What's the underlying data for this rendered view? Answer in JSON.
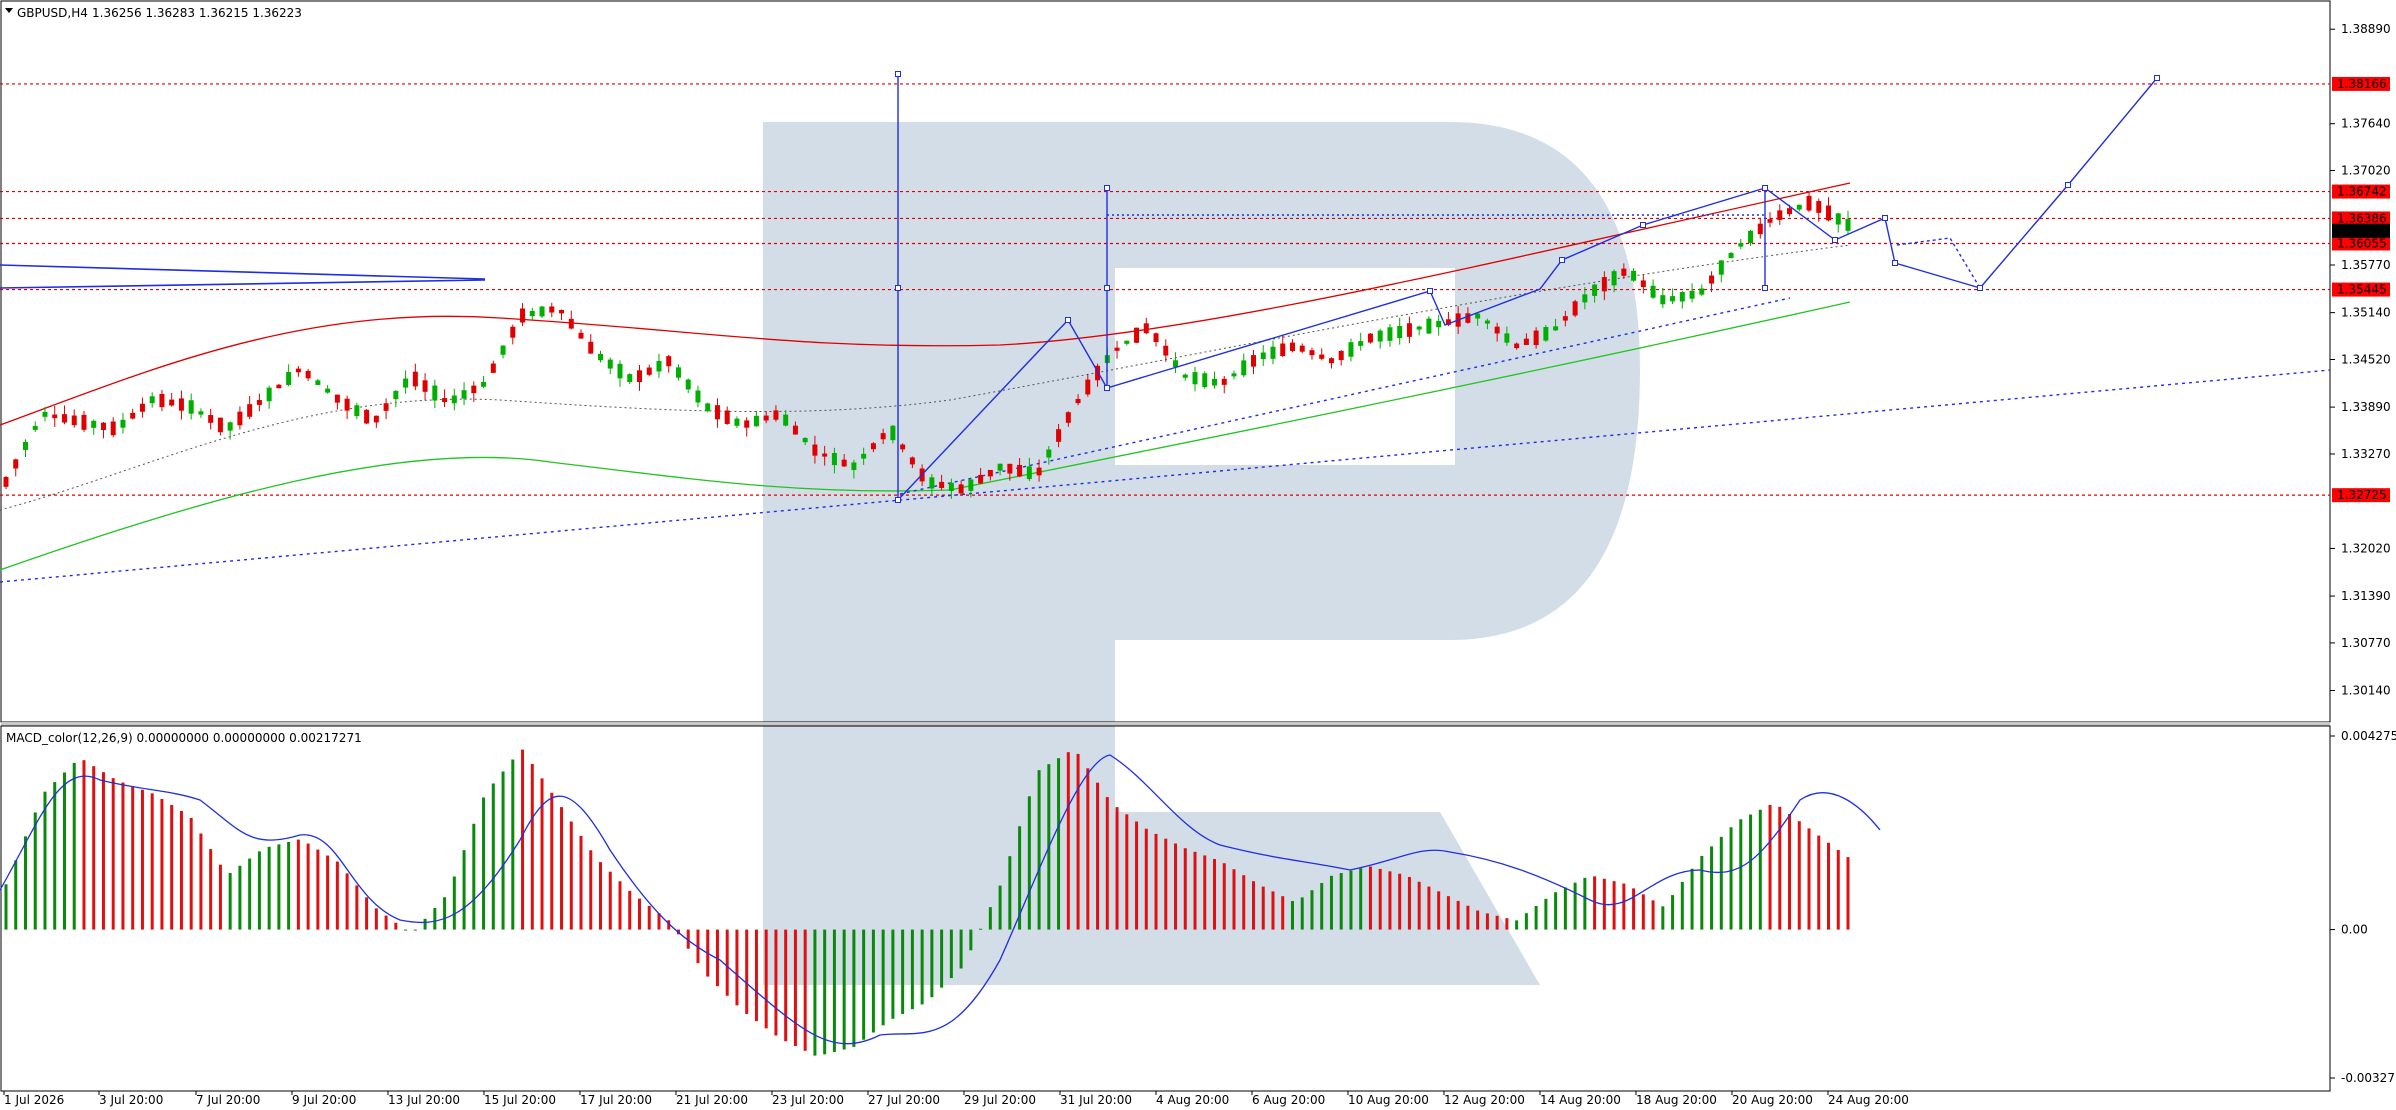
{
  "header": {
    "symbol_label": "GBPUSD,H4",
    "ohlc": "1.36256 1.36283 1.36215 1.36223"
  },
  "indicator": {
    "label": "MACD_color(12,26,9) 0.00000000 0.00000000 0.00217271",
    "ticks": [
      "0.0042756",
      "0.00",
      "-0.0032779"
    ],
    "tick_values": [
      0.0042756,
      0.0,
      -0.0032779
    ]
  },
  "colors": {
    "bull": "#00b000",
    "bear": "#e00000",
    "level_line": "#e00000",
    "price_tag": "#ff0000",
    "current_tag": "#000000",
    "ma_red": "#e00000",
    "ma_green": "#22c422",
    "forecast": "#1f2fe0",
    "macd_signal": "#1f2fe0",
    "watermark": "#d3dde8"
  },
  "chart_data": {
    "type": "candlestick",
    "title": "GBPUSD,H4",
    "y_ticks": [
      1.3889,
      1.3764,
      1.3702,
      1.3577,
      1.3514,
      1.3452,
      1.3389,
      1.3327,
      1.3202,
      1.3139,
      1.3077,
      1.3014
    ],
    "y_tick_labels": [
      "1.38890",
      "1.37640",
      "1.37020",
      "1.35770",
      "1.35140",
      "1.34520",
      "1.33890",
      "1.33270",
      "1.32020",
      "1.31390",
      "1.30770",
      "1.30140"
    ],
    "hidden_ticks": [
      "1.38270",
      "1.36390",
      "1.32640"
    ],
    "ylim": [
      1.2975,
      1.3925
    ],
    "x_labels": [
      "1 Jul 2026",
      "3 Jul 20:00",
      "7 Jul 20:00",
      "9 Jul 20:00",
      "13 Jul 20:00",
      "15 Jul 20:00",
      "17 Jul 20:00",
      "21 Jul 20:00",
      "23 Jul 20:00",
      "27 Jul 20:00",
      "29 Jul 20:00",
      "31 Jul 20:00",
      "4 Aug 20:00",
      "6 Aug 20:00",
      "10 Aug 20:00",
      "12 Aug 20:00",
      "14 Aug 20:00",
      "18 Aug 20:00",
      "20 Aug 20:00",
      "24 Aug 20:00"
    ],
    "levels": [
      {
        "value": 1.38166,
        "label": "1.38166"
      },
      {
        "value": 1.36742,
        "label": "1.36742"
      },
      {
        "value": 1.36386,
        "label": "1.36386"
      },
      {
        "value": 1.36055,
        "label": "1.36055"
      },
      {
        "value": 1.35445,
        "label": "1.35445"
      },
      {
        "value": 1.32725,
        "label": "1.32725"
      }
    ],
    "current_price": {
      "value": 1.36223,
      "label": "1.36223"
    },
    "path_key": [
      [
        1.329,
        1.3315
      ],
      [
        1.338,
        1.341
      ],
      [
        1.337,
        1.3395
      ],
      [
        1.336,
        1.338
      ],
      [
        1.34,
        1.342
      ],
      [
        1.339,
        1.3375
      ],
      [
        1.336,
        1.335
      ],
      [
        1.34,
        1.343
      ],
      [
        1.344,
        1.342
      ],
      [
        1.34,
        1.338
      ],
      [
        1.337,
        1.3395
      ],
      [
        1.343,
        1.341
      ],
      [
        1.3395,
        1.3375
      ],
      [
        1.342,
        1.3445
      ],
      [
        1.351,
        1.354
      ],
      [
        1.352,
        1.349
      ],
      [
        1.346,
        1.3435
      ],
      [
        1.3425,
        1.3445
      ],
      [
        1.345,
        1.341
      ],
      [
        1.339,
        1.337
      ],
      [
        1.3365,
        1.338
      ],
      [
        1.338,
        1.336
      ],
      [
        1.333,
        1.331
      ],
      [
        1.331,
        1.333
      ],
      [
        1.336,
        1.332
      ],
      [
        1.329,
        1.328
      ],
      [
        1.328,
        1.3295
      ],
      [
        1.331,
        1.329
      ],
      [
        1.33,
        1.334
      ],
      [
        1.339,
        1.344
      ],
      [
        1.346,
        1.349
      ],
      [
        1.3495,
        1.347
      ],
      [
        1.343,
        1.341
      ],
      [
        1.342,
        1.3445
      ],
      [
        1.3455,
        1.3465
      ],
      [
        1.347,
        1.346
      ],
      [
        1.345,
        1.347
      ],
      [
        1.348,
        1.35
      ],
      [
        1.349,
        1.351
      ],
      [
        1.35,
        1.3505
      ],
      [
        1.351,
        1.349
      ],
      [
        1.347,
        1.348
      ],
      [
        1.349,
        1.352
      ],
      [
        1.354,
        1.356
      ],
      [
        1.357,
        1.355
      ],
      [
        1.353,
        1.352
      ],
      [
        1.354,
        1.358
      ],
      [
        1.36,
        1.362
      ],
      [
        1.364,
        1.365
      ],
      [
        1.366,
        1.364
      ],
      [
        1.363,
        1.3622
      ]
    ]
  }
}
